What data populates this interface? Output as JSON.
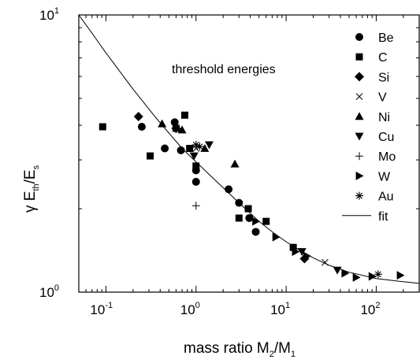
{
  "chart_data": {
    "type": "scatter",
    "annotation": "threshold energies",
    "xlabel": {
      "main": "mass ratio M",
      "sub1": "2",
      "mid": "/M",
      "sub2": "1"
    },
    "ylabel": {
      "g": "γ E",
      "sub1": "th",
      "mid": "/E",
      "sub2": "s"
    },
    "x_scale": "log",
    "y_scale": "log",
    "xlim": [
      0.05,
      300
    ],
    "ylim": [
      1,
      10
    ],
    "x_ticks": [
      {
        "base": "10",
        "exp": "-1",
        "value": 0.1
      },
      {
        "base": "10",
        "exp": "0",
        "value": 1
      },
      {
        "base": "10",
        "exp": "1",
        "value": 10
      },
      {
        "base": "10",
        "exp": "2",
        "value": 100
      }
    ],
    "y_ticks": [
      {
        "base": "10",
        "exp": "0",
        "value": 1
      },
      {
        "base": "10",
        "exp": "1",
        "value": 10
      }
    ],
    "legend_position": "right",
    "grid": false,
    "series": [
      {
        "name": "Be",
        "marker": "circle",
        "points": [
          [
            0.25,
            3.95
          ],
          [
            0.45,
            3.3
          ],
          [
            0.58,
            4.1
          ],
          [
            0.68,
            3.25
          ],
          [
            1.0,
            2.75
          ],
          [
            1.0,
            2.5
          ],
          [
            2.3,
            2.35
          ],
          [
            3.0,
            2.1
          ],
          [
            3.9,
            1.85
          ],
          [
            4.6,
            1.65
          ]
        ]
      },
      {
        "name": "C",
        "marker": "square",
        "points": [
          [
            0.092,
            3.95
          ],
          [
            0.31,
            3.1
          ],
          [
            0.6,
            3.9
          ],
          [
            0.75,
            4.35
          ],
          [
            0.85,
            3.3
          ],
          [
            1.0,
            2.85
          ],
          [
            3.0,
            1.85
          ],
          [
            3.8,
            2.0
          ],
          [
            6.0,
            1.8
          ],
          [
            12.0,
            1.45
          ]
        ]
      },
      {
        "name": "Si",
        "marker": "diamond",
        "points": [
          [
            0.23,
            4.3
          ],
          [
            0.6,
            3.9
          ],
          [
            16.0,
            1.32
          ]
        ]
      },
      {
        "name": "V",
        "marker": "x",
        "points": [
          [
            1.0,
            3.3
          ],
          [
            27.0,
            1.28
          ]
        ]
      },
      {
        "name": "Ni",
        "marker": "triangle-up",
        "points": [
          [
            0.42,
            4.05
          ],
          [
            0.7,
            3.85
          ],
          [
            1.25,
            3.3
          ],
          [
            2.7,
            2.9
          ]
        ]
      },
      {
        "name": "Cu",
        "marker": "triangle-down",
        "points": [
          [
            0.95,
            3.1
          ],
          [
            1.4,
            3.4
          ],
          [
            15.0,
            1.4
          ],
          [
            37.0,
            1.2
          ]
        ]
      },
      {
        "name": "Mo",
        "marker": "plus",
        "points": [
          [
            1.0,
            2.05
          ]
        ]
      },
      {
        "name": "W",
        "marker": "triangle-right",
        "points": [
          [
            4.6,
            1.8
          ],
          [
            7.7,
            1.58
          ],
          [
            12.7,
            1.4
          ],
          [
            17.0,
            1.35
          ],
          [
            45.0,
            1.17
          ],
          [
            60.0,
            1.13
          ],
          [
            90.0,
            1.14
          ],
          [
            185.0,
            1.15
          ]
        ]
      },
      {
        "name": "Au",
        "marker": "asterisk",
        "points": [
          [
            1.0,
            3.4
          ],
          [
            1.1,
            3.35
          ],
          [
            105.0,
            1.16
          ]
        ]
      },
      {
        "name": "fit",
        "marker": "line",
        "points": [
          [
            0.05,
            10.0
          ],
          [
            0.07,
            8.6
          ],
          [
            0.1,
            7.3
          ],
          [
            0.2,
            5.4
          ],
          [
            0.35,
            4.3
          ],
          [
            0.5,
            3.75
          ],
          [
            0.7,
            3.3
          ],
          [
            1.0,
            2.95
          ],
          [
            1.5,
            2.6
          ],
          [
            2.0,
            2.38
          ],
          [
            3.0,
            2.1
          ],
          [
            5.0,
            1.8
          ],
          [
            7.0,
            1.65
          ],
          [
            10.0,
            1.52
          ],
          [
            15.0,
            1.4
          ],
          [
            20.0,
            1.33
          ],
          [
            30.0,
            1.25
          ],
          [
            50.0,
            1.18
          ],
          [
            100.0,
            1.12
          ],
          [
            200.0,
            1.09
          ],
          [
            300.0,
            1.075
          ]
        ]
      }
    ]
  }
}
